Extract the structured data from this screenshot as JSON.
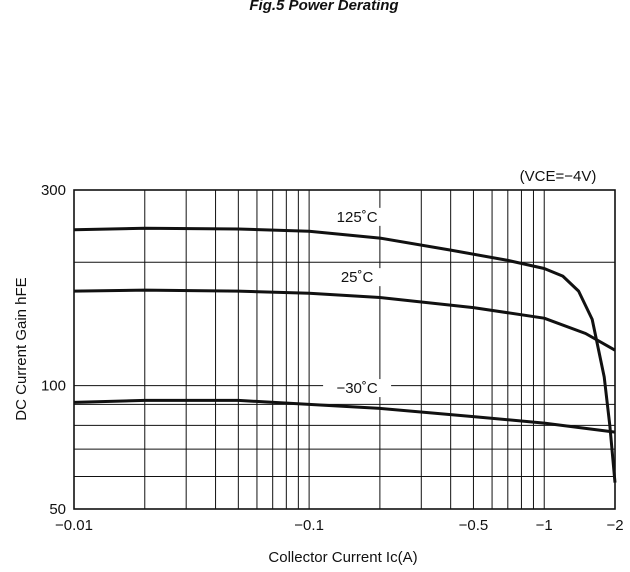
{
  "chart_data": {
    "type": "line",
    "title": "Fig.5 Power Derating",
    "condition": "(VCE=−4V)",
    "xlabel": "Collector Current  Ic(A)",
    "ylabel": "DC Current Gain  hFE",
    "x_scale": "log",
    "y_scale": "log",
    "xlim": [
      0.01,
      2
    ],
    "ylim": [
      50,
      300
    ],
    "x_tick_values": [
      0.01,
      0.1,
      0.5,
      1,
      2
    ],
    "x_tick_labels": [
      "−0.01",
      "−0.1",
      "−0.5",
      "−1",
      "−2"
    ],
    "y_tick_values": [
      50,
      100,
      300
    ],
    "y_tick_labels": [
      "50",
      "100",
      "300"
    ],
    "grid": true,
    "series": [
      {
        "name": "125˚C",
        "x": [
          0.01,
          0.02,
          0.05,
          0.1,
          0.2,
          0.4,
          0.7,
          1.0,
          1.2,
          1.4,
          1.6,
          1.8,
          1.9,
          2.0
        ],
        "y": [
          240,
          242,
          241,
          238,
          229,
          214,
          202,
          193,
          185,
          170,
          145,
          105,
          80,
          58
        ]
      },
      {
        "name": "25˚C",
        "x": [
          0.01,
          0.02,
          0.05,
          0.1,
          0.2,
          0.5,
          1.0,
          1.5,
          2.0
        ],
        "y": [
          170,
          171,
          170,
          168,
          164,
          155,
          146,
          134,
          122
        ]
      },
      {
        "name": "−30˚C",
        "x": [
          0.01,
          0.02,
          0.05,
          0.1,
          0.2,
          0.5,
          1.0,
          2.0
        ],
        "y": [
          91,
          92,
          92,
          90,
          88,
          84,
          81,
          77
        ]
      }
    ]
  }
}
